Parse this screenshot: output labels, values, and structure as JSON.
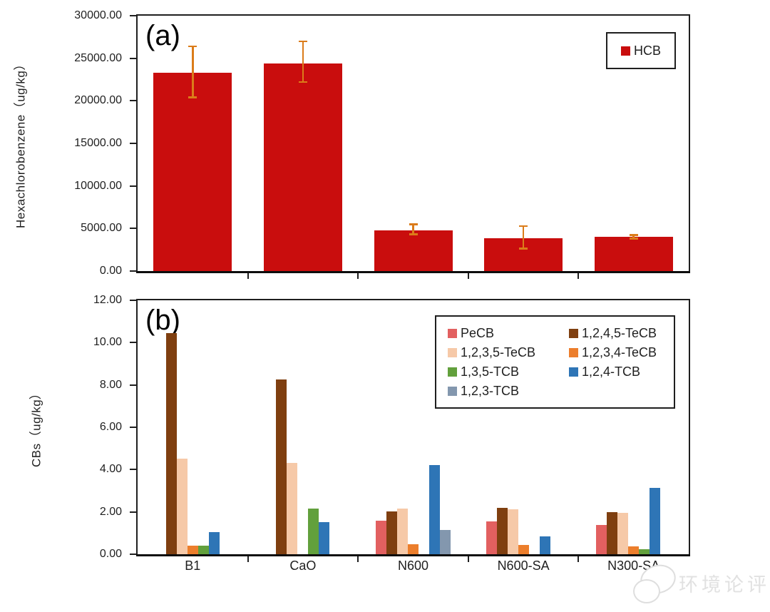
{
  "figure": {
    "watermark_text": "环境论评"
  },
  "chart_data": [
    {
      "type": "bar",
      "panel_label": "(a)",
      "ylabel": "Hexachlorobenzene（ug/kg）",
      "xlabel": "",
      "categories": [
        "B1",
        "CaO",
        "N600",
        "N600-SA",
        "N300-SA"
      ],
      "ylim": [
        0,
        30000
      ],
      "ytick_step": 5000,
      "ytick_labels": [
        "0.00",
        "5000.00",
        "10000.00",
        "15000.00",
        "20000.00",
        "25000.00",
        "30000.00"
      ],
      "grid": false,
      "legend_position": "top-right",
      "show_x_labels": false,
      "error_bar_color": "#DB7C1A",
      "series": [
        {
          "name": "HCB",
          "color": "#C90D0D",
          "values": [
            23300,
            24400,
            4800,
            3850,
            4000
          ],
          "error_up": [
            3100,
            2600,
            700,
            1450,
            250
          ],
          "error_down": [
            2900,
            2200,
            500,
            1250,
            200
          ]
        }
      ]
    },
    {
      "type": "bar",
      "panel_label": "(b)",
      "ylabel": "CBs（ug/kg）",
      "xlabel": "",
      "categories": [
        "B1",
        "CaO",
        "N600",
        "N600-SA",
        "N300-SA"
      ],
      "ylim": [
        0,
        12
      ],
      "ytick_step": 2,
      "ytick_labels": [
        "0.00",
        "2.00",
        "4.00",
        "6.00",
        "8.00",
        "10.00",
        "12.00"
      ],
      "grid": false,
      "legend_position": "top-right-inside",
      "show_x_labels": true,
      "series": [
        {
          "name": "PeCB",
          "color": "#E26060",
          "values": [
            0,
            0,
            1.58,
            1.55,
            1.38
          ]
        },
        {
          "name": "1,2,4,5-TeCB",
          "color": "#7F3F10",
          "values": [
            10.45,
            8.26,
            2.02,
            2.19,
            1.99
          ]
        },
        {
          "name": "1,2,3,5-TeCB",
          "color": "#F6C9A8",
          "values": [
            4.52,
            4.31,
            2.16,
            2.12,
            1.96
          ]
        },
        {
          "name": "1,2,3,4-TeCB",
          "color": "#EC7E2C",
          "values": [
            0.4,
            0,
            0.47,
            0.44,
            0.37
          ]
        },
        {
          "name": "1,3,5-TCB",
          "color": "#62A03C",
          "values": [
            0.39,
            2.16,
            0,
            0,
            0.24
          ]
        },
        {
          "name": "1,2,4-TCB",
          "color": "#2E75B6",
          "values": [
            1.04,
            1.52,
            4.21,
            0.84,
            3.13
          ]
        },
        {
          "name": "1,2,3-TCB",
          "color": "#8397AE",
          "values": [
            0,
            0,
            1.15,
            0,
            0
          ]
        }
      ]
    }
  ]
}
